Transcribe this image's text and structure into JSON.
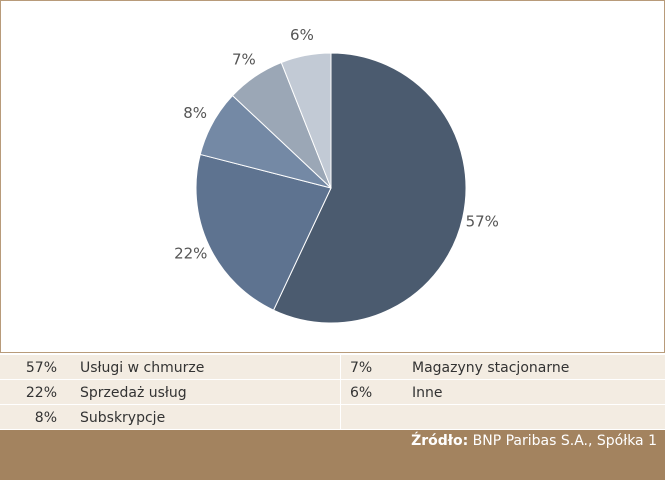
{
  "chart_data": {
    "type": "pie",
    "categories": [
      "Usługi w chmurze",
      "Sprzedaż usług",
      "Subskrypcje",
      "Magazyny stacjonarne",
      "Inne"
    ],
    "values": [
      57,
      22,
      8,
      7,
      6
    ],
    "value_labels": [
      "57%",
      "22%",
      "8%",
      "7%",
      "6%"
    ],
    "colors": [
      "#4b5b6f",
      "#5e7390",
      "#7489a5",
      "#9ba7b6",
      "#c2cad5"
    ],
    "source_label": "Źródło:",
    "source": "BNP Paribas S.A., Spółka 1"
  }
}
